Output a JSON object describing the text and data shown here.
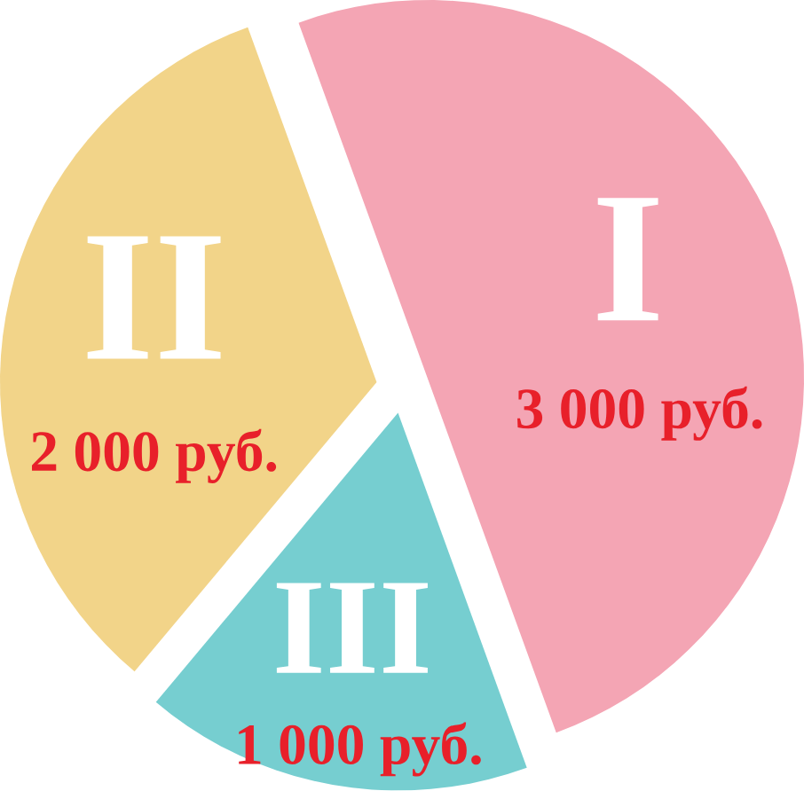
{
  "chart_data": {
    "type": "pie",
    "categories": [
      "I",
      "II",
      "III"
    ],
    "values": [
      3000,
      2000,
      1000
    ],
    "colors": [
      "#f4a5b4",
      "#f2d489",
      "#76ced0"
    ],
    "value_labels": [
      "3 000 руб.",
      "2 000 руб.",
      "1 000 руб."
    ]
  }
}
